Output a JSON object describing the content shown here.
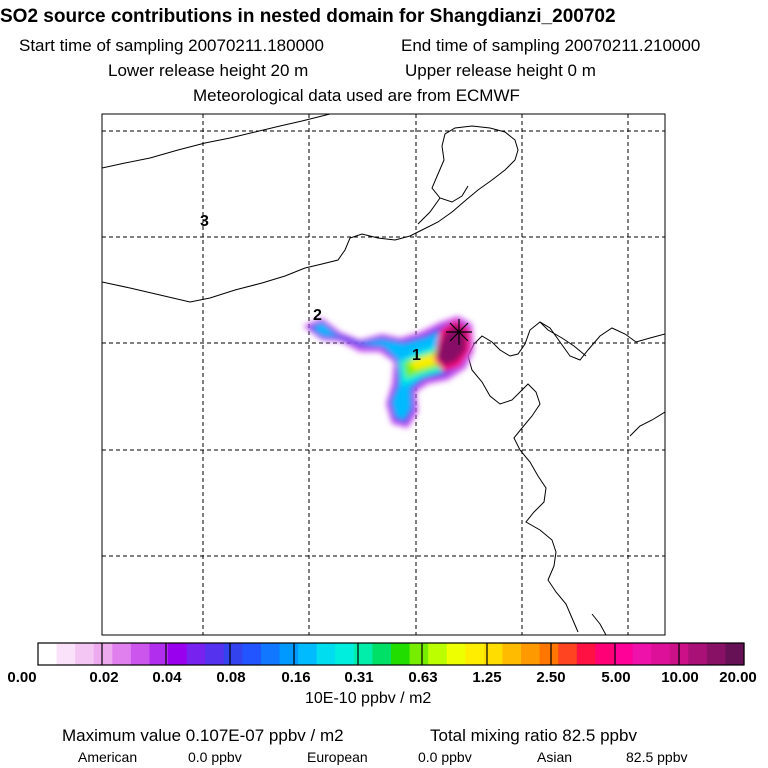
{
  "header": {
    "title": "SO2 source contributions in nested domain for Shangdianzi_200702",
    "start_time": "Start time of sampling 20070211.180000",
    "end_time": "End time of sampling 20070211.210000",
    "lower_height": "Lower release height   20 m",
    "upper_height": "Upper release height    0 m",
    "met_data": "Meteorological data used are from ECMWF"
  },
  "map": {
    "source_labels": [
      "1",
      "2",
      "3"
    ],
    "receptor_marker": "receptor-cross"
  },
  "legend": {
    "ticks": [
      "0.00",
      "0.02",
      "0.04",
      "0.08",
      "0.16",
      "0.31",
      "0.63",
      "1.25",
      "2.50",
      "5.00",
      "10.00",
      "20.00"
    ],
    "units": "10E-10 ppbv / m2",
    "colors": [
      "#ffffff",
      "#fbe2fb",
      "#f4c6f4",
      "#eeaaee",
      "#e080ee",
      "#cc55ee",
      "#b22eee",
      "#9900ee",
      "#7722ee",
      "#5533ee",
      "#3344ee",
      "#2255ff",
      "#1177ff",
      "#0099ff",
      "#00bbff",
      "#00ddee",
      "#00eedd",
      "#00eeaa",
      "#00e066",
      "#22dd00",
      "#77ee00",
      "#bbff00",
      "#eeff00",
      "#ffee00",
      "#ffdd00",
      "#ffbb00",
      "#ff9900",
      "#ff7700",
      "#ff4422",
      "#ff1144",
      "#ff0077",
      "#ff0099",
      "#ee11aa",
      "#dd1199",
      "#cc1188",
      "#aa1177",
      "#881166",
      "#661155"
    ]
  },
  "footer": {
    "max_value": "Maximum value  0.107E-07 ppbv / m2",
    "total_ratio": "Total mixing ratio      82.5 ppbv",
    "american_label": "American",
    "american_value": "0.0 ppbv",
    "european_label": "European",
    "european_value": "0.0 ppbv",
    "asian_label": "Asian",
    "asian_value": "82.5 ppbv"
  }
}
